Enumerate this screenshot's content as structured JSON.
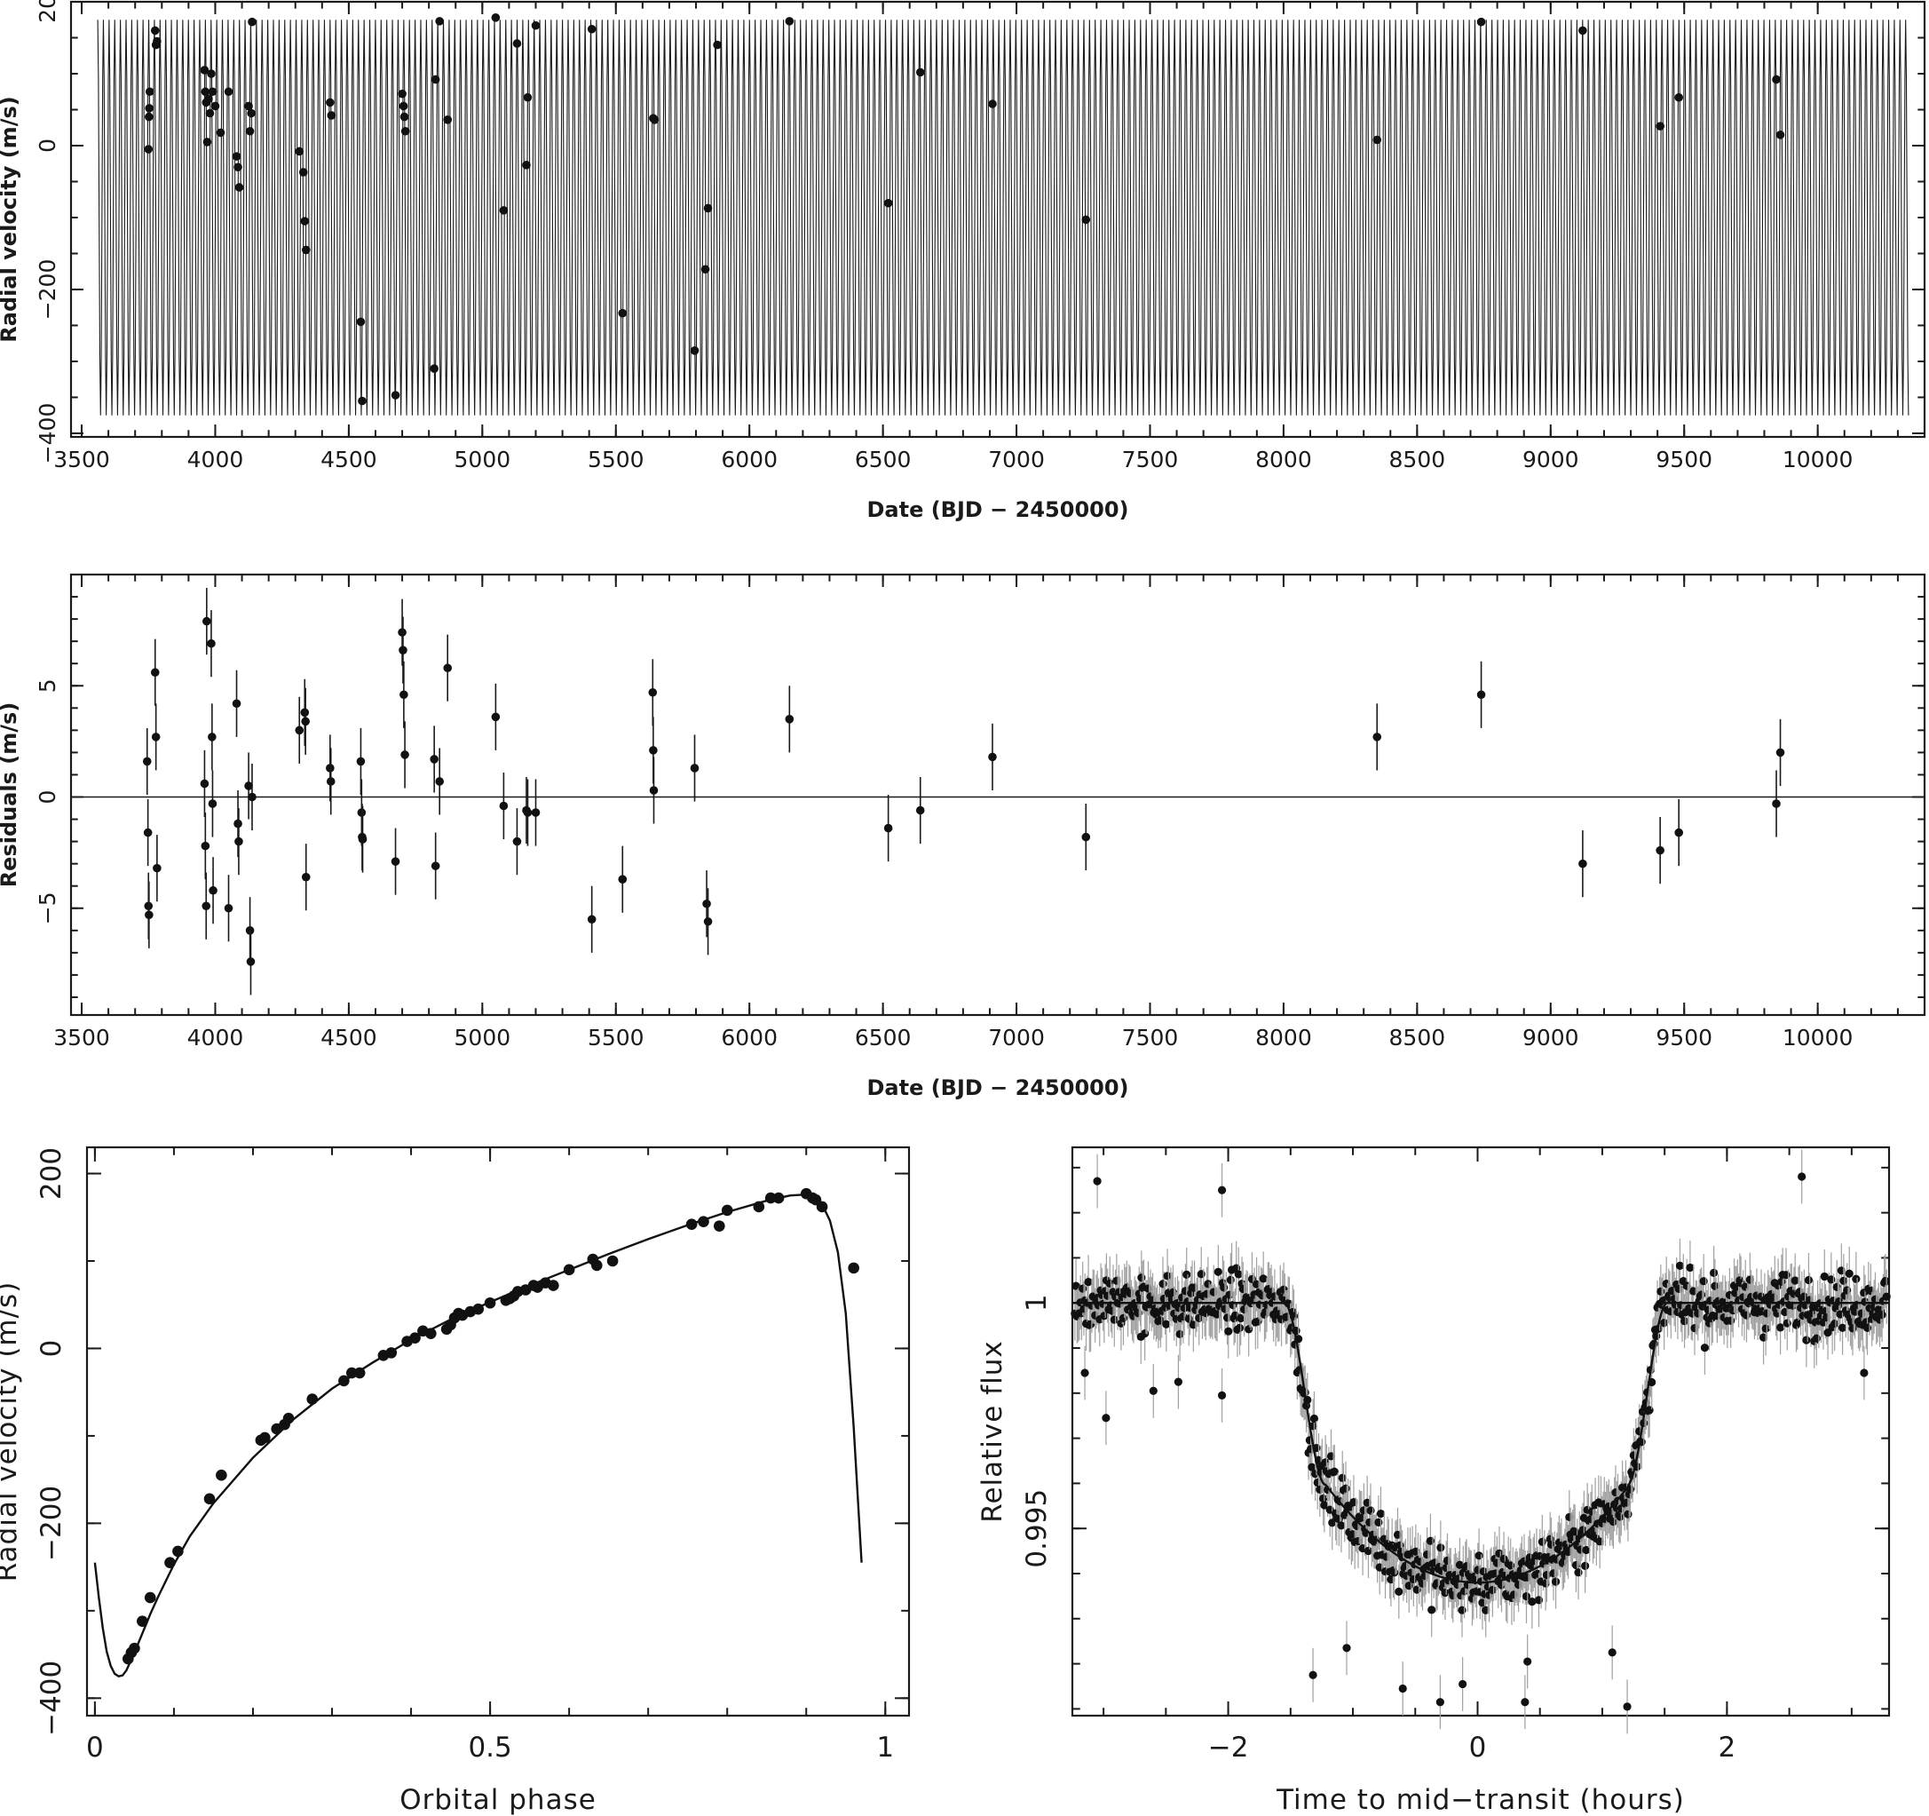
{
  "colors": {
    "ink": "#111111",
    "errorbar_light": "#a0a0a0",
    "background": "#ffffff"
  },
  "chart_data": [
    {
      "id": "rv_time",
      "type": "scatter",
      "xlabel": "Date (BJD − 2450000)",
      "ylabel": "Radial velocity (m/s)",
      "xlim": [
        3460,
        10400
      ],
      "ylim": [
        -405,
        200
      ],
      "xticks": [
        3500,
        4000,
        4500,
        5000,
        5500,
        6000,
        6500,
        7000,
        7500,
        8000,
        8500,
        9000,
        9500,
        10000
      ],
      "xtick_labels": [
        "3500",
        "4000",
        "4500",
        "5000",
        "5500",
        "6000",
        "6500",
        "7000",
        "7500",
        "8000",
        "8500",
        "9000",
        "9500",
        "10000"
      ],
      "yticks": [
        -400,
        -200,
        0,
        200
      ],
      "ytick_labels": [
        "−400",
        "−200",
        "0",
        "200"
      ],
      "model": {
        "period_days": 21.22,
        "t_start": 3560,
        "t_end": 10340,
        "v_max": 175,
        "v_min": -375
      },
      "points": [
        [
          3750,
          -5
        ],
        [
          3752,
          40
        ],
        [
          3753,
          52
        ],
        [
          3755,
          75
        ],
        [
          3775,
          160
        ],
        [
          3778,
          140
        ],
        [
          3782,
          145
        ],
        [
          3960,
          105
        ],
        [
          3963,
          75
        ],
        [
          3966,
          60
        ],
        [
          3970,
          5
        ],
        [
          3975,
          65
        ],
        [
          3980,
          45
        ],
        [
          3985,
          100
        ],
        [
          3990,
          75
        ],
        [
          4000,
          55
        ],
        [
          4020,
          18
        ],
        [
          4050,
          75
        ],
        [
          4080,
          -15
        ],
        [
          4085,
          -30
        ],
        [
          4090,
          -58
        ],
        [
          4125,
          55
        ],
        [
          4130,
          20
        ],
        [
          4135,
          45
        ],
        [
          4138,
          172
        ],
        [
          4315,
          -8
        ],
        [
          4330,
          -37
        ],
        [
          4335,
          -105
        ],
        [
          4340,
          -145
        ],
        [
          4430,
          60
        ],
        [
          4435,
          42
        ],
        [
          4545,
          -245
        ],
        [
          4550,
          -355
        ],
        [
          4675,
          -347
        ],
        [
          4700,
          72
        ],
        [
          4705,
          55
        ],
        [
          4708,
          40
        ],
        [
          4712,
          20
        ],
        [
          4820,
          -310
        ],
        [
          4825,
          92
        ],
        [
          4840,
          173
        ],
        [
          4870,
          36
        ],
        [
          5050,
          178
        ],
        [
          5080,
          -90
        ],
        [
          5130,
          142
        ],
        [
          5165,
          -27
        ],
        [
          5170,
          67
        ],
        [
          5200,
          167
        ],
        [
          5410,
          162
        ],
        [
          5525,
          -233
        ],
        [
          5640,
          38
        ],
        [
          5645,
          36
        ],
        [
          5795,
          -285
        ],
        [
          5835,
          -172
        ],
        [
          5845,
          -87
        ],
        [
          5880,
          140
        ],
        [
          6150,
          173
        ],
        [
          6520,
          -80
        ],
        [
          6640,
          102
        ],
        [
          6910,
          58
        ],
        [
          7260,
          -103
        ],
        [
          8350,
          8
        ],
        [
          8740,
          172
        ],
        [
          9120,
          160
        ],
        [
          9410,
          27
        ],
        [
          9480,
          67
        ],
        [
          9845,
          92
        ],
        [
          9860,
          15
        ]
      ]
    },
    {
      "id": "residuals_time",
      "type": "scatter",
      "xlabel": "Date (BJD − 2450000)",
      "ylabel": "Residuals (m/s)",
      "xlim": [
        3460,
        10400
      ],
      "ylim": [
        -9.8,
        10
      ],
      "xticks": [
        3500,
        4000,
        4500,
        5000,
        5500,
        6000,
        6500,
        7000,
        7500,
        8000,
        8500,
        9000,
        9500,
        10000
      ],
      "xtick_labels": [
        "3500",
        "4000",
        "4500",
        "5000",
        "5500",
        "6000",
        "6500",
        "7000",
        "7500",
        "8000",
        "8500",
        "9000",
        "9500",
        "10000"
      ],
      "yticks": [
        -5,
        0,
        5
      ],
      "ytick_labels": [
        "−5",
        "0",
        "5"
      ],
      "error_bar": 1.5,
      "points": [
        [
          3745,
          1.6
        ],
        [
          3748,
          -1.6
        ],
        [
          3750,
          -4.9
        ],
        [
          3752,
          -5.3
        ],
        [
          3775,
          5.6
        ],
        [
          3778,
          2.7
        ],
        [
          3782,
          -3.2
        ],
        [
          3960,
          0.6
        ],
        [
          3963,
          -2.2
        ],
        [
          3966,
          -4.9
        ],
        [
          3968,
          7.9
        ],
        [
          3985,
          6.9
        ],
        [
          3988,
          2.7
        ],
        [
          3990,
          -0.3
        ],
        [
          3992,
          -4.2
        ],
        [
          4050,
          -5.0
        ],
        [
          4080,
          4.2
        ],
        [
          4085,
          -1.2
        ],
        [
          4088,
          -2.0
        ],
        [
          4125,
          0.5
        ],
        [
          4130,
          -6.0
        ],
        [
          4133,
          -7.4
        ],
        [
          4138,
          0.0
        ],
        [
          4315,
          3.0
        ],
        [
          4335,
          3.8
        ],
        [
          4338,
          3.4
        ],
        [
          4340,
          -3.6
        ],
        [
          4430,
          1.3
        ],
        [
          4433,
          0.7
        ],
        [
          4545,
          1.6
        ],
        [
          4548,
          -0.7
        ],
        [
          4550,
          -1.8
        ],
        [
          4552,
          -1.9
        ],
        [
          4675,
          -2.9
        ],
        [
          4700,
          7.4
        ],
        [
          4703,
          6.6
        ],
        [
          4706,
          4.6
        ],
        [
          4710,
          1.9
        ],
        [
          4820,
          1.7
        ],
        [
          4825,
          -3.1
        ],
        [
          4840,
          0.7
        ],
        [
          4870,
          5.8
        ],
        [
          5050,
          3.6
        ],
        [
          5080,
          -0.4
        ],
        [
          5130,
          -2.0
        ],
        [
          5165,
          -0.6
        ],
        [
          5170,
          -0.7
        ],
        [
          5200,
          -0.7
        ],
        [
          5410,
          -5.5
        ],
        [
          5525,
          -3.7
        ],
        [
          5638,
          4.7
        ],
        [
          5640,
          2.1
        ],
        [
          5642,
          0.3
        ],
        [
          5795,
          1.3
        ],
        [
          5840,
          -4.8
        ],
        [
          5845,
          -5.6
        ],
        [
          6150,
          3.5
        ],
        [
          6520,
          -1.4
        ],
        [
          6640,
          -0.6
        ],
        [
          6910,
          1.8
        ],
        [
          7260,
          -1.8
        ],
        [
          8350,
          2.7
        ],
        [
          8740,
          4.6
        ],
        [
          9120,
          -3.0
        ],
        [
          9410,
          -2.4
        ],
        [
          9480,
          -1.6
        ],
        [
          9845,
          -0.3
        ],
        [
          9860,
          2.0
        ]
      ]
    },
    {
      "id": "rv_phase",
      "type": "scatter",
      "xlabel": "Orbital phase",
      "ylabel": "Radial velocity (m/s)",
      "xlim": [
        -0.01,
        1.03
      ],
      "ylim": [
        -420,
        230
      ],
      "xticks": [
        0,
        0.5,
        1
      ],
      "xtick_labels": [
        "0",
        "0.5",
        "1"
      ],
      "yticks": [
        -400,
        -200,
        0,
        200
      ],
      "ytick_labels": [
        "−400",
        "−200",
        "0",
        "200"
      ],
      "model_curve": [
        [
          0.0,
          -245
        ],
        [
          0.005,
          -285
        ],
        [
          0.01,
          -320
        ],
        [
          0.015,
          -347
        ],
        [
          0.02,
          -363
        ],
        [
          0.025,
          -372
        ],
        [
          0.03,
          -375
        ],
        [
          0.035,
          -374
        ],
        [
          0.04,
          -368
        ],
        [
          0.05,
          -348
        ],
        [
          0.06,
          -326
        ],
        [
          0.07,
          -304
        ],
        [
          0.08,
          -284
        ],
        [
          0.1,
          -247
        ],
        [
          0.12,
          -215
        ],
        [
          0.15,
          -177
        ],
        [
          0.2,
          -125
        ],
        [
          0.25,
          -82
        ],
        [
          0.3,
          -46
        ],
        [
          0.35,
          -17
        ],
        [
          0.4,
          10
        ],
        [
          0.45,
          33
        ],
        [
          0.5,
          53
        ],
        [
          0.55,
          72
        ],
        [
          0.6,
          90
        ],
        [
          0.65,
          108
        ],
        [
          0.7,
          125
        ],
        [
          0.75,
          141
        ],
        [
          0.8,
          156
        ],
        [
          0.85,
          169
        ],
        [
          0.88,
          175
        ],
        [
          0.9,
          176
        ],
        [
          0.91,
          174
        ],
        [
          0.92,
          165
        ],
        [
          0.93,
          146
        ],
        [
          0.94,
          110
        ],
        [
          0.95,
          40
        ],
        [
          0.96,
          -90
        ],
        [
          0.97,
          -245
        ]
      ],
      "points": [
        [
          0.042,
          -355
        ],
        [
          0.046,
          -348
        ],
        [
          0.05,
          -343
        ],
        [
          0.06,
          -312
        ],
        [
          0.07,
          -285
        ],
        [
          0.095,
          -245
        ],
        [
          0.105,
          -232
        ],
        [
          0.145,
          -172
        ],
        [
          0.16,
          -145
        ],
        [
          0.21,
          -105
        ],
        [
          0.215,
          -102
        ],
        [
          0.23,
          -92
        ],
        [
          0.24,
          -87
        ],
        [
          0.245,
          -80
        ],
        [
          0.275,
          -58
        ],
        [
          0.315,
          -37
        ],
        [
          0.325,
          -28
        ],
        [
          0.335,
          -28
        ],
        [
          0.365,
          -8
        ],
        [
          0.375,
          -5
        ],
        [
          0.395,
          8
        ],
        [
          0.405,
          12
        ],
        [
          0.415,
          20
        ],
        [
          0.425,
          17
        ],
        [
          0.445,
          22
        ],
        [
          0.45,
          27
        ],
        [
          0.455,
          35
        ],
        [
          0.46,
          40
        ],
        [
          0.465,
          38
        ],
        [
          0.475,
          42
        ],
        [
          0.485,
          45
        ],
        [
          0.5,
          52
        ],
        [
          0.52,
          55
        ],
        [
          0.525,
          57
        ],
        [
          0.53,
          60
        ],
        [
          0.535,
          65
        ],
        [
          0.545,
          67
        ],
        [
          0.555,
          72
        ],
        [
          0.56,
          70
        ],
        [
          0.57,
          75
        ],
        [
          0.58,
          72
        ],
        [
          0.6,
          90
        ],
        [
          0.63,
          102
        ],
        [
          0.635,
          95
        ],
        [
          0.655,
          100
        ],
        [
          0.755,
          142
        ],
        [
          0.77,
          145
        ],
        [
          0.79,
          140
        ],
        [
          0.8,
          158
        ],
        [
          0.84,
          162
        ],
        [
          0.855,
          172
        ],
        [
          0.865,
          172
        ],
        [
          0.9,
          177
        ],
        [
          0.908,
          172
        ],
        [
          0.912,
          170
        ],
        [
          0.92,
          162
        ],
        [
          0.96,
          92
        ]
      ]
    },
    {
      "id": "transit",
      "type": "scatter",
      "xlabel": "Time to mid−transit (hours)",
      "ylabel": "Relative flux",
      "xlim": [
        -3.25,
        3.3
      ],
      "ylim": [
        0.99085,
        1.00345
      ],
      "xticks": [
        -2,
        0,
        2
      ],
      "xtick_labels": [
        "−2",
        "0",
        "2"
      ],
      "yticks": [
        0.995,
        1
      ],
      "ytick_labels": [
        "0.995",
        "1"
      ],
      "model": {
        "depth": 0.0062,
        "t_ingress_start": -1.55,
        "t_ingress_end": -1.22,
        "t_egress_start": 1.2,
        "t_egress_end": 1.52,
        "error_bar": 0.0006
      },
      "outliers": [
        [
          -2.98,
          0.99745
        ],
        [
          -2.4,
          0.99825
        ],
        [
          -2.05,
          0.99795
        ],
        [
          -2.6,
          0.99805
        ],
        [
          -2.7,
          0.99925
        ],
        [
          -3.05,
          1.0027
        ],
        [
          -2.05,
          1.0025
        ],
        [
          -0.12,
          0.99155
        ],
        [
          0.38,
          0.99115
        ],
        [
          -0.6,
          0.99145
        ],
        [
          1.2,
          0.99105
        ],
        [
          2.6,
          1.0028
        ],
        [
          -3.15,
          0.99845
        ],
        [
          3.1,
          0.99845
        ],
        [
          -0.3,
          0.99115
        ],
        [
          0.4,
          0.99205
        ],
        [
          -1.05,
          0.99235
        ],
        [
          -1.32,
          0.99175
        ],
        [
          1.08,
          0.99225
        ]
      ]
    }
  ]
}
